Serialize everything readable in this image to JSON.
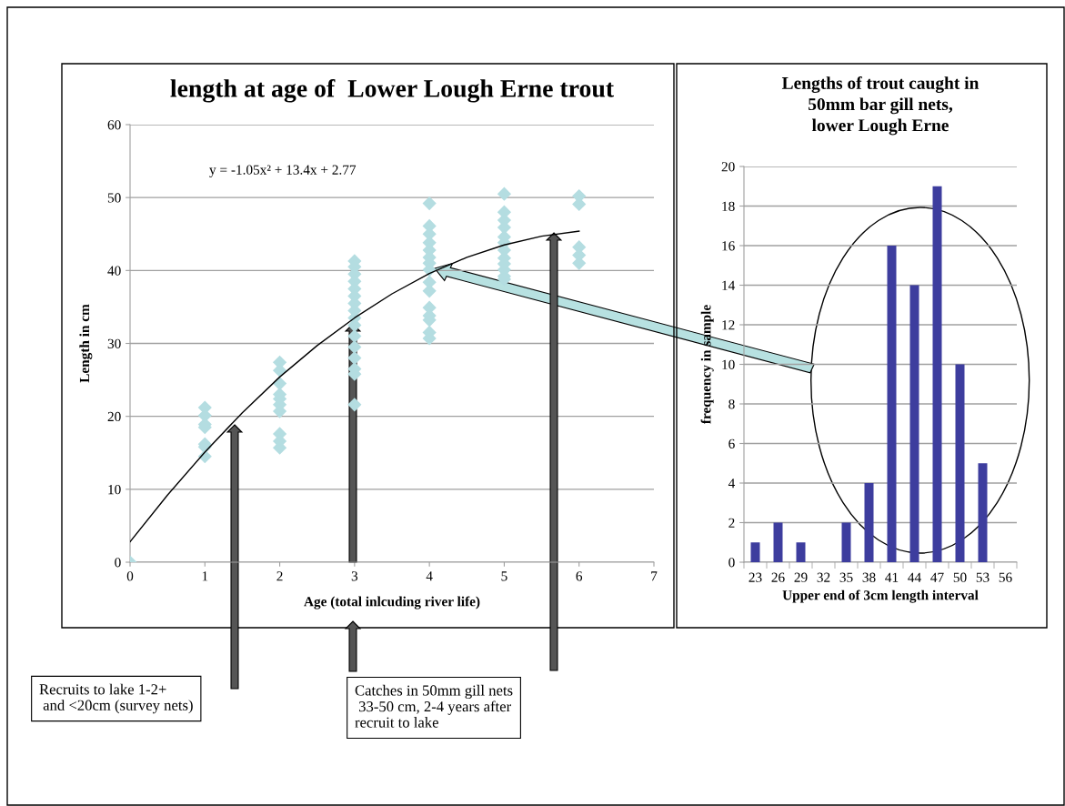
{
  "chart_data": [
    {
      "type": "scatter",
      "title": "length at age of  Lower Lough Erne trout",
      "xlabel": "Age (total inlcuding river life)",
      "ylabel": "Length in cm",
      "xlim": [
        0,
        7
      ],
      "xticks": [
        0,
        1,
        2,
        3,
        4,
        5,
        6,
        7
      ],
      "ylim": [
        0,
        60
      ],
      "yticks": [
        0,
        10,
        20,
        30,
        40,
        50,
        60
      ],
      "grid": "y",
      "marker": "diamond",
      "series": [
        {
          "type": "scatter",
          "color": "#b4dde1",
          "x": [
            0,
            1,
            1,
            1,
            1,
            1,
            1,
            1,
            2,
            2,
            2,
            2,
            2,
            2,
            2,
            2,
            2,
            2,
            3,
            3,
            3,
            3,
            3,
            3,
            3,
            3,
            3,
            3,
            3,
            3,
            3,
            3,
            3,
            3,
            4,
            4,
            4,
            4,
            4,
            4,
            4,
            4,
            4,
            4,
            4,
            4,
            4,
            4,
            4,
            5,
            5,
            5,
            5,
            5,
            5,
            5,
            5,
            5,
            5,
            5,
            5,
            6,
            6,
            6,
            6,
            6
          ],
          "values": [
            0,
            21.2,
            20.1,
            18.9,
            18.5,
            16.2,
            15.8,
            14.5,
            27.4,
            26.3,
            24.5,
            23.0,
            22.4,
            21.6,
            20.7,
            17.6,
            16.6,
            15.7,
            41.3,
            40.5,
            39.5,
            38.5,
            37.5,
            36.5,
            35.5,
            34.5,
            33.5,
            32.5,
            31,
            29.5,
            28,
            26.5,
            25.8,
            21.6,
            49.2,
            46.1,
            45.0,
            43.8,
            42.8,
            41.8,
            41.0,
            40.1,
            38.4,
            37.2,
            34.9,
            33.8,
            33.2,
            31.5,
            30.7,
            50.5,
            48.0,
            46.9,
            45.9,
            44.6,
            43.8,
            42.8,
            41.7,
            40.9,
            40.1,
            39.2,
            38.8,
            50.2,
            49.1,
            43.2,
            42.1,
            41.0
          ]
        },
        {
          "type": "line",
          "color": "#000000",
          "marker": "none",
          "x": [
            0,
            0.5,
            1,
            1.5,
            2,
            2.5,
            3,
            3.5,
            4,
            4.5,
            5,
            5.5,
            6
          ],
          "values": [
            2.8,
            9.2,
            15.1,
            20.5,
            25.4,
            29.7,
            33.5,
            36.8,
            39.6,
            41.8,
            43.5,
            44.7,
            45.4
          ]
        }
      ],
      "annotations": [
        "y = -1.05x² + 13.4x + 2.77",
        "Recruits to lake 1-2+\n and <20cm (survey nets)",
        "Catches in 50mm gill nets\n 33-50 cm, 2-4 years after\nrecruit to lake"
      ]
    },
    {
      "type": "bar",
      "title": "Lengths of trout caught in\n50mm bar gill nets,\nlower Lough Erne",
      "xlabel": "Upper end of 3cm length interval",
      "ylabel": "frequency in sample",
      "categories": [
        "23",
        "26",
        "29",
        "32",
        "35",
        "38",
        "41",
        "44",
        "47",
        "50",
        "53",
        "56"
      ],
      "values": [
        1,
        2,
        1,
        0,
        2,
        4,
        16,
        14,
        19,
        10,
        5,
        0
      ],
      "color": "#3d3d9e",
      "ylim": [
        0,
        20
      ],
      "yticks": [
        0,
        2,
        4,
        6,
        8,
        10,
        12,
        14,
        16,
        18,
        20
      ],
      "grid": "y"
    }
  ]
}
